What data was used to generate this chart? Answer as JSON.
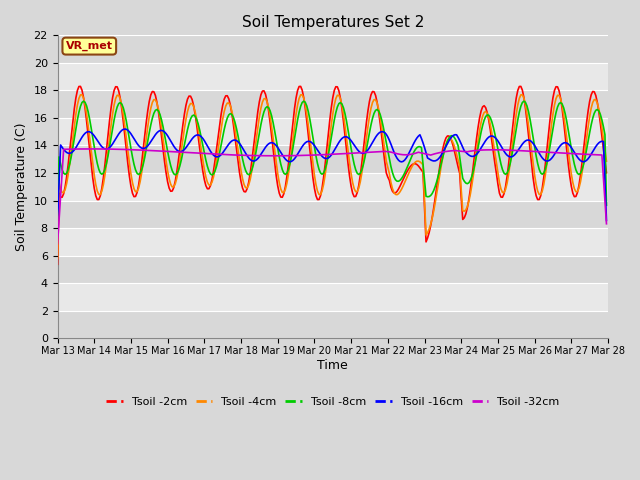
{
  "title": "Soil Temperatures Set 2",
  "xlabel": "Time",
  "ylabel": "Soil Temperature (C)",
  "ylim": [
    0,
    22
  ],
  "yticks": [
    0,
    2,
    4,
    6,
    8,
    10,
    12,
    14,
    16,
    18,
    20,
    22
  ],
  "outer_bg": "#d8d8d8",
  "plot_bg_light": "#e8e8e8",
  "plot_bg_dark": "#d0d0d0",
  "grid_color": "#ffffff",
  "annotation_text": "VR_met",
  "annotation_box_color": "#ffff99",
  "annotation_border_color": "#8B4513",
  "lines": {
    "Tsoil -2cm": {
      "color": "#ff0000",
      "lw": 1.2
    },
    "Tsoil -4cm": {
      "color": "#ff8800",
      "lw": 1.2
    },
    "Tsoil -8cm": {
      "color": "#00cc00",
      "lw": 1.2
    },
    "Tsoil -16cm": {
      "color": "#0000ff",
      "lw": 1.2
    },
    "Tsoil -32cm": {
      "color": "#cc00cc",
      "lw": 1.2
    }
  },
  "n_days": 15,
  "day_start": 13
}
